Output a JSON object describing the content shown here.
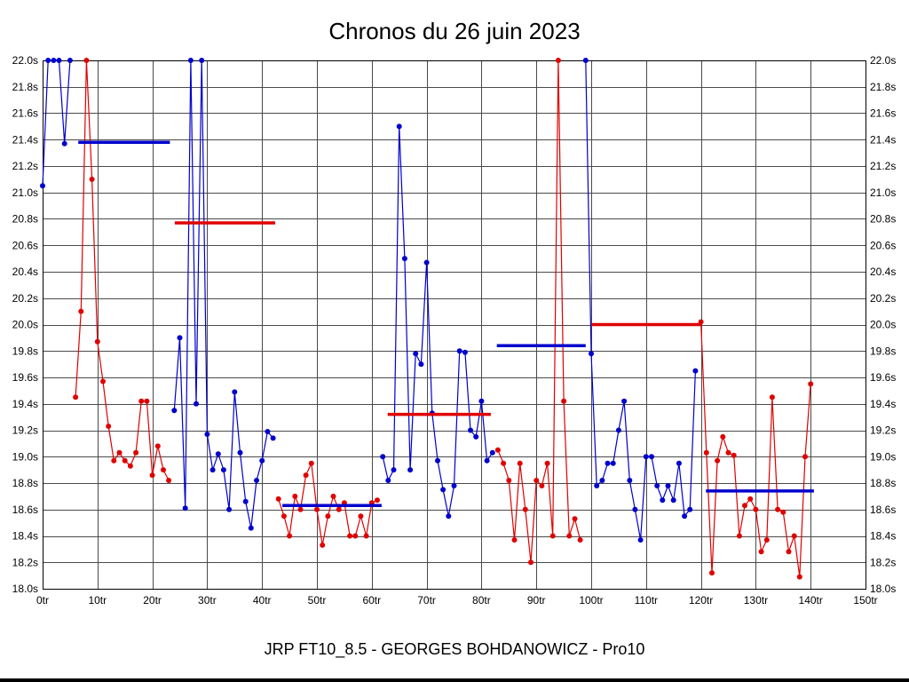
{
  "chart_data": {
    "type": "line",
    "title": "Chronos du 26 juin 2023",
    "subtitle": "JRP FT10_8.5 - GEORGES BOHDANOWICZ - Pro10",
    "x_unit": "tr",
    "y_unit": "s",
    "xlim": [
      0,
      150
    ],
    "ylim": [
      18.0,
      22.0
    ],
    "grid": true,
    "legend": "none",
    "colors": {
      "blue": "#0000cd",
      "red": "#e00000",
      "grid": "#4a4a4a",
      "text": "#000000"
    },
    "x_ticks": [
      {
        "value": 0,
        "label": "0tr"
      },
      {
        "value": 10,
        "label": "10tr"
      },
      {
        "value": 20,
        "label": "20tr"
      },
      {
        "value": 30,
        "label": "30tr"
      },
      {
        "value": 40,
        "label": "40tr"
      },
      {
        "value": 50,
        "label": "50tr"
      },
      {
        "value": 60,
        "label": "60tr"
      },
      {
        "value": 70,
        "label": "70tr"
      },
      {
        "value": 80,
        "label": "80tr"
      },
      {
        "value": 90,
        "label": "90tr"
      },
      {
        "value": 100,
        "label": "100tr"
      },
      {
        "value": 110,
        "label": "110tr"
      },
      {
        "value": 120,
        "label": "120tr"
      },
      {
        "value": 130,
        "label": "130tr"
      },
      {
        "value": 140,
        "label": "140tr"
      },
      {
        "value": 150,
        "label": "150tr"
      }
    ],
    "y_ticks": [
      {
        "value": 22.0,
        "label": "22.0s"
      },
      {
        "value": 21.8,
        "label": "21.8s"
      },
      {
        "value": 21.6,
        "label": "21.6s"
      },
      {
        "value": 21.4,
        "label": "21.4s"
      },
      {
        "value": 21.2,
        "label": "21.2s"
      },
      {
        "value": 21.0,
        "label": "21.0s"
      },
      {
        "value": 20.8,
        "label": "20.8s"
      },
      {
        "value": 20.6,
        "label": "20.6s"
      },
      {
        "value": 20.4,
        "label": "20.4s"
      },
      {
        "value": 20.2,
        "label": "20.2s"
      },
      {
        "value": 20.0,
        "label": "20.0s"
      },
      {
        "value": 19.8,
        "label": "19.8s"
      },
      {
        "value": 19.6,
        "label": "19.6s"
      },
      {
        "value": 19.4,
        "label": "19.4s"
      },
      {
        "value": 19.2,
        "label": "19.2s"
      },
      {
        "value": 19.0,
        "label": "19.0s"
      },
      {
        "value": 18.8,
        "label": "18.8s"
      },
      {
        "value": 18.6,
        "label": "18.6s"
      },
      {
        "value": 18.4,
        "label": "18.4s"
      },
      {
        "value": 18.2,
        "label": "18.2s"
      },
      {
        "value": 18.0,
        "label": "18.0s"
      }
    ],
    "segments": [
      {
        "name": "run-1",
        "color": "blue",
        "start_lap": 0,
        "values": [
          21.05,
          22.0,
          22.0,
          22.0,
          21.37,
          22.0
        ]
      },
      {
        "name": "run-2",
        "color": "red",
        "start_lap": 6,
        "values": [
          19.45,
          20.1,
          22.0,
          21.1,
          19.87,
          19.57,
          19.23,
          18.97,
          19.03,
          18.97,
          18.93,
          19.03,
          19.42,
          19.42,
          18.86,
          19.08,
          18.9,
          18.82
        ]
      },
      {
        "name": "run-3",
        "color": "blue",
        "start_lap": 24,
        "values": [
          19.35,
          19.9,
          18.61,
          22.0,
          19.4,
          22.0,
          19.17,
          18.9,
          19.02,
          18.9,
          18.6,
          19.49,
          19.03,
          18.66,
          18.46,
          18.82,
          18.97,
          19.19,
          19.14
        ]
      },
      {
        "name": "run-4",
        "color": "red",
        "start_lap": 43,
        "values": [
          18.68,
          18.55,
          18.4,
          18.7,
          18.6,
          18.86,
          18.95,
          18.6,
          18.33,
          18.55,
          18.7,
          18.6,
          18.65,
          18.4,
          18.4,
          18.55,
          18.4,
          18.65,
          18.67
        ]
      },
      {
        "name": "run-5",
        "color": "blue",
        "start_lap": 62,
        "values": [
          19.0,
          18.82,
          18.9,
          21.5,
          20.5,
          18.9,
          19.78,
          19.7,
          20.47,
          19.33,
          18.97,
          18.75,
          18.55,
          18.78,
          19.8,
          19.79,
          19.2,
          19.15,
          19.42,
          18.97,
          19.03
        ]
      },
      {
        "name": "run-6",
        "color": "red",
        "start_lap": 83,
        "values": [
          19.05,
          18.95,
          18.82,
          18.37,
          18.95,
          18.6,
          18.2,
          18.82,
          18.78,
          18.95,
          18.4,
          22.0,
          19.42,
          18.4,
          18.53,
          18.37
        ]
      },
      {
        "name": "run-7",
        "color": "blue",
        "start_lap": 99,
        "values": [
          22.0,
          19.78,
          18.78,
          18.82,
          18.95,
          18.95,
          19.2,
          19.42,
          18.82,
          18.6,
          18.37,
          19.0,
          19.0,
          18.78,
          18.67,
          18.78,
          18.67,
          18.95,
          18.55,
          18.6,
          19.65
        ]
      },
      {
        "name": "run-8",
        "color": "red",
        "start_lap": 120,
        "values": [
          20.02,
          19.03,
          18.12,
          18.97,
          19.15,
          19.03,
          19.01,
          18.4,
          18.63,
          18.68,
          18.6,
          18.28,
          18.37,
          19.45,
          18.6,
          18.58,
          18.28,
          18.4,
          18.09,
          19.0,
          19.55
        ]
      }
    ],
    "average_lines": [
      {
        "color": "blue",
        "from_lap": 6.5,
        "to_lap": 23.2,
        "value": 21.38
      },
      {
        "color": "red",
        "from_lap": 24.1,
        "to_lap": 42.4,
        "value": 20.77
      },
      {
        "color": "blue",
        "from_lap": 43.7,
        "to_lap": 61.8,
        "value": 18.63
      },
      {
        "color": "red",
        "from_lap": 62.9,
        "to_lap": 81.7,
        "value": 19.32
      },
      {
        "color": "blue",
        "from_lap": 82.8,
        "to_lap": 99.0,
        "value": 19.84
      },
      {
        "color": "red",
        "from_lap": 100.1,
        "to_lap": 120.0,
        "value": 20.0
      },
      {
        "color": "blue",
        "from_lap": 120.9,
        "to_lap": 140.6,
        "value": 18.74
      }
    ]
  }
}
